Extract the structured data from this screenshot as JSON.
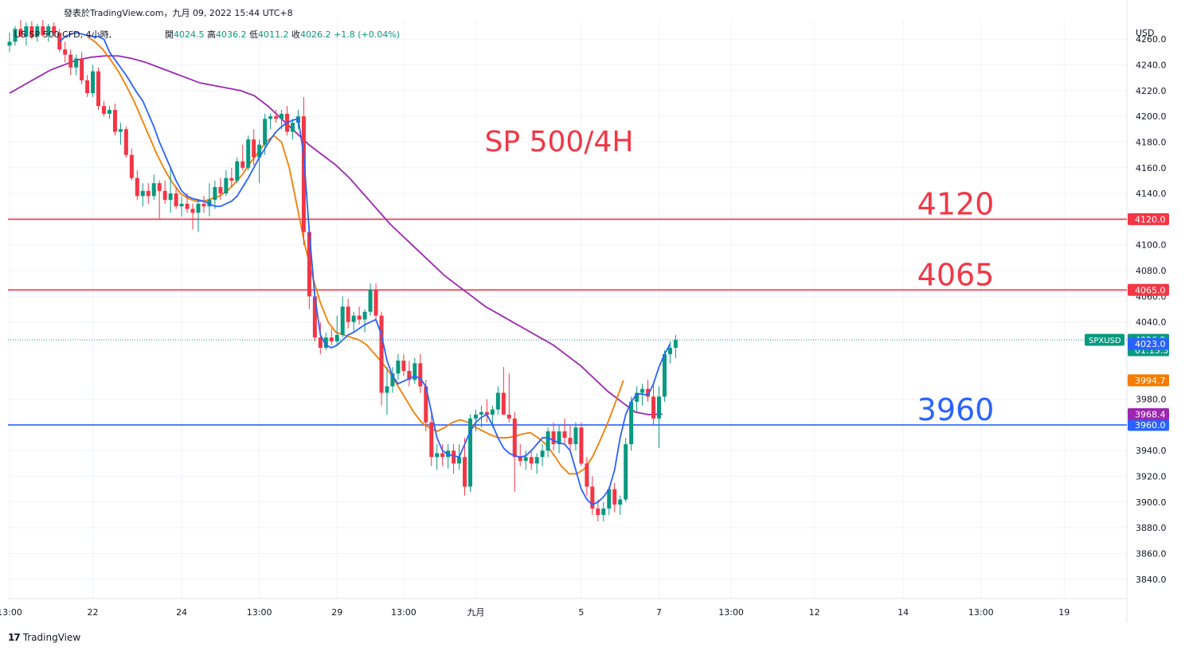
{
  "published": "發表於TradingView.com，九月 09, 2022 15:44 UTC+8",
  "symbol_line": "US SP 500 CFD, 4小時,",
  "ohlc": {
    "o_label": "開",
    "o": "4024.5",
    "h_label": "高",
    "h": "4036.2",
    "l_label": "低",
    "l": "4011.2",
    "c_label": "收",
    "c": "4026.2",
    "chg": "+1.8 (+0.04%)"
  },
  "currency": "USD",
  "footer_brand": "TradingView",
  "colors": {
    "up": "#089981",
    "down": "#f23645",
    "ma_fast": "#2962ff",
    "ma_mid": "#f57c00",
    "ma_slow": "#9c27b0",
    "res_line": "#f23645",
    "sup_line": "#2962ff"
  },
  "chart_data": {
    "type": "candlestick",
    "title": "SP 500/4H",
    "ylim": [
      3825,
      4275
    ],
    "y_ticks": [
      "4260.0",
      "4240.0",
      "4220.0",
      "4200.0",
      "4180.0",
      "4160.0",
      "4140.0",
      "4120.0",
      "4100.0",
      "4080.0",
      "4060.0",
      "4040.0",
      "3980.0",
      "3940.0",
      "3920.0",
      "3900.0",
      "3880.0",
      "3860.0",
      "3840.0"
    ],
    "x_ticks": [
      {
        "label": "13:00",
        "i": 0
      },
      {
        "label": "22",
        "i": 15
      },
      {
        "label": "24",
        "i": 31
      },
      {
        "label": "13:00",
        "i": 45
      },
      {
        "label": "29",
        "i": 59
      },
      {
        "label": "13:00",
        "i": 71
      },
      {
        "label": "九月",
        "i": 84
      },
      {
        "label": "5",
        "i": 103
      },
      {
        "label": "7",
        "i": 117
      },
      {
        "label": "13:00",
        "i": 130
      },
      {
        "label": "12",
        "i": 145
      },
      {
        "label": "14",
        "i": 161
      },
      {
        "label": "13:00",
        "i": 175
      },
      {
        "label": "19",
        "i": 190
      }
    ],
    "candles": [
      [
        4255,
        4265,
        4250,
        4258
      ],
      [
        4258,
        4270,
        4255,
        4268
      ],
      [
        4268,
        4275,
        4262,
        4262
      ],
      [
        4262,
        4273,
        4255,
        4270
      ],
      [
        4270,
        4274,
        4260,
        4262
      ],
      [
        4262,
        4272,
        4258,
        4270
      ],
      [
        4270,
        4275,
        4262,
        4263
      ],
      [
        4263,
        4272,
        4258,
        4270
      ],
      [
        4270,
        4273,
        4262,
        4265
      ],
      [
        4265,
        4268,
        4250,
        4252
      ],
      [
        4252,
        4258,
        4242,
        4248
      ],
      [
        4248,
        4252,
        4232,
        4238
      ],
      [
        4238,
        4248,
        4232,
        4245
      ],
      [
        4245,
        4250,
        4225,
        4228
      ],
      [
        4228,
        4232,
        4215,
        4218
      ],
      [
        4218,
        4240,
        4215,
        4235
      ],
      [
        4235,
        4238,
        4205,
        4208
      ],
      [
        4208,
        4212,
        4200,
        4202
      ],
      [
        4202,
        4208,
        4198,
        4205
      ],
      [
        4205,
        4210,
        4185,
        4188
      ],
      [
        4188,
        4195,
        4178,
        4190
      ],
      [
        4190,
        4192,
        4168,
        4170
      ],
      [
        4170,
        4175,
        4150,
        4152
      ],
      [
        4152,
        4158,
        4135,
        4138
      ],
      [
        4138,
        4148,
        4130,
        4142
      ],
      [
        4142,
        4148,
        4132,
        4138
      ],
      [
        4138,
        4155,
        4135,
        4148
      ],
      [
        4148,
        4150,
        4120,
        4142
      ],
      [
        4142,
        4150,
        4132,
        4135
      ],
      [
        4135,
        4160,
        4125,
        4140
      ],
      [
        4140,
        4145,
        4128,
        4130
      ],
      [
        4130,
        4138,
        4122,
        4132
      ],
      [
        4132,
        4140,
        4125,
        4128
      ],
      [
        4128,
        4132,
        4112,
        4125
      ],
      [
        4125,
        4135,
        4110,
        4132
      ],
      [
        4132,
        4138,
        4125,
        4130
      ],
      [
        4130,
        4148,
        4122,
        4135
      ],
      [
        4135,
        4150,
        4128,
        4145
      ],
      [
        4145,
        4152,
        4135,
        4140
      ],
      [
        4140,
        4158,
        4138,
        4152
      ],
      [
        4152,
        4160,
        4145,
        4150
      ],
      [
        4150,
        4168,
        4148,
        4165
      ],
      [
        4165,
        4178,
        4158,
        4160
      ],
      [
        4160,
        4185,
        4158,
        4182
      ],
      [
        4182,
        4190,
        4162,
        4168
      ],
      [
        4168,
        4182,
        4148,
        4178
      ],
      [
        4178,
        4202,
        4170,
        4198
      ],
      [
        4198,
        4202,
        4190,
        4200
      ],
      [
        4200,
        4205,
        4195,
        4198
      ],
      [
        4198,
        4205,
        4190,
        4202
      ],
      [
        4202,
        4208,
        4185,
        4188
      ],
      [
        4188,
        4198,
        4182,
        4195
      ],
      [
        4195,
        4205,
        4190,
        4200
      ],
      [
        4200,
        4215,
        4100,
        4110
      ],
      [
        4110,
        4115,
        4050,
        4060
      ],
      [
        4060,
        4065,
        4025,
        4028
      ],
      [
        4028,
        4040,
        4015,
        4020
      ],
      [
        4020,
        4032,
        4018,
        4028
      ],
      [
        4028,
        4035,
        4022,
        4025
      ],
      [
        4025,
        4045,
        4022,
        4030
      ],
      [
        4030,
        4060,
        4028,
        4052
      ],
      [
        4052,
        4058,
        4035,
        4040
      ],
      [
        4040,
        4048,
        4032,
        4045
      ],
      [
        4045,
        4052,
        4038,
        4042
      ],
      [
        4042,
        4050,
        4032,
        4048
      ],
      [
        4048,
        4070,
        4045,
        4065
      ],
      [
        4065,
        4070,
        4040,
        4045
      ],
      [
        4045,
        4048,
        3975,
        3985
      ],
      [
        3985,
        4005,
        3968,
        3990
      ],
      [
        3990,
        4005,
        3985,
        4000
      ],
      [
        4000,
        4015,
        3995,
        4010
      ],
      [
        4010,
        4015,
        3998,
        4002
      ],
      [
        4002,
        4010,
        3990,
        3995
      ],
      [
        3995,
        4012,
        3992,
        4008
      ],
      [
        4008,
        4015,
        3985,
        3990
      ],
      [
        3990,
        3995,
        3955,
        3962
      ],
      [
        3962,
        3968,
        3928,
        3935
      ],
      [
        3935,
        3945,
        3925,
        3938
      ],
      [
        3938,
        3945,
        3928,
        3935
      ],
      [
        3935,
        3945,
        3926,
        3940
      ],
      [
        3940,
        3945,
        3922,
        3930
      ],
      [
        3930,
        3945,
        3925,
        3935
      ],
      [
        3935,
        3950,
        3905,
        3912
      ],
      [
        3912,
        3968,
        3908,
        3965
      ],
      [
        3965,
        3972,
        3955,
        3968
      ],
      [
        3968,
        3975,
        3958,
        3970
      ],
      [
        3970,
        3980,
        3962,
        3968
      ],
      [
        3968,
        3975,
        3958,
        3972
      ],
      [
        3972,
        3990,
        3968,
        3985
      ],
      [
        3985,
        4005,
        3970,
        3968
      ],
      [
        3968,
        4000,
        3962,
        3965
      ],
      [
        3965,
        3970,
        3908,
        3935
      ],
      [
        3935,
        3945,
        3928,
        3932
      ],
      [
        3932,
        3940,
        3925,
        3935
      ],
      [
        3935,
        3940,
        3925,
        3930
      ],
      [
        3930,
        3938,
        3922,
        3935
      ],
      [
        3935,
        3945,
        3928,
        3940
      ],
      [
        3940,
        3958,
        3935,
        3955
      ],
      [
        3955,
        3962,
        3940,
        3945
      ],
      [
        3945,
        3960,
        3938,
        3955
      ],
      [
        3955,
        3965,
        3945,
        3950
      ],
      [
        3950,
        3960,
        3940,
        3945
      ],
      [
        3945,
        3962,
        3940,
        3958
      ],
      [
        3958,
        3962,
        3928,
        3930
      ],
      [
        3930,
        3935,
        3905,
        3912
      ],
      [
        3912,
        3920,
        3890,
        3895
      ],
      [
        3895,
        3902,
        3885,
        3890
      ],
      [
        3890,
        3900,
        3885,
        3895
      ],
      [
        3895,
        3912,
        3890,
        3910
      ],
      [
        3910,
        3915,
        3892,
        3898
      ],
      [
        3898,
        3905,
        3890,
        3902
      ],
      [
        3902,
        3950,
        3900,
        3945
      ],
      [
        3945,
        3982,
        3940,
        3978
      ],
      [
        3978,
        3990,
        3970,
        3985
      ],
      [
        3985,
        3992,
        3975,
        3988
      ],
      [
        3988,
        3995,
        3978,
        3982
      ],
      [
        3982,
        3992,
        3960,
        3965
      ],
      [
        3965,
        3990,
        3942,
        3982
      ],
      [
        3982,
        4018,
        3978,
        4015
      ],
      [
        4015,
        4025,
        4008,
        4020
      ],
      [
        4020,
        4030,
        4012,
        4026
      ]
    ],
    "ma_fast": [
      4258,
      4262,
      4264,
      4265,
      4264,
      4263,
      4262,
      4262,
      4260,
      4250,
      4244,
      4238,
      4232,
      4225,
      4218,
      4212,
      4202,
      4192,
      4180,
      4170,
      4160,
      4150,
      4142,
      4138,
      4136,
      4135,
      4134,
      4132,
      4130,
      4130,
      4132,
      4134,
      4138,
      4145,
      4152,
      4160,
      4168,
      4175,
      4182,
      4188,
      4192,
      4195,
      4197,
      4198,
      4170,
      4110,
      4060,
      4030,
      4022,
      4020,
      4022,
      4026,
      4030,
      4032,
      4035,
      4038,
      4040,
      4042,
      4030,
      4010,
      3998,
      3992,
      3994,
      3996,
      3998,
      3996,
      3990,
      3970,
      3950,
      3940,
      3937,
      3936,
      3935,
      3945,
      3955,
      3962,
      3966,
      3968,
      3960,
      3950,
      3942,
      3938,
      3936,
      3935,
      3936,
      3940,
      3945,
      3950,
      3950,
      3948,
      3946,
      3945,
      3940,
      3925,
      3910,
      3902,
      3898,
      3900,
      3904,
      3910,
      3925,
      3950,
      3968,
      3978,
      3984,
      3984,
      3983,
      3992,
      4005,
      4015,
      4023
    ],
    "ma_fast_start": 9,
    "ma_mid": [
      4262,
      4258,
      4252,
      4244,
      4235,
      4224,
      4212,
      4198,
      4184,
      4170,
      4158,
      4148,
      4140,
      4136,
      4134,
      4134,
      4136,
      4138,
      4142,
      4148,
      4155,
      4164,
      4172,
      4180,
      4185,
      4180,
      4160,
      4130,
      4100,
      4075,
      4055,
      4040,
      4032,
      4030,
      4028,
      4026,
      4022,
      4015,
      4008,
      4000,
      3990,
      3980,
      3970,
      3962,
      3958,
      3955,
      3958,
      3962,
      3964,
      3962,
      3958,
      3955,
      3952,
      3950,
      3950,
      3951,
      3953,
      3954,
      3950,
      3945,
      3937,
      3928,
      3922,
      3922,
      3926,
      3935,
      3948,
      3962,
      3978,
      3994.7
    ],
    "ma_mid_start": 14,
    "ma_slow": [
      4218,
      4224,
      4230,
      4236,
      4240,
      4244,
      4246,
      4247,
      4247,
      4245,
      4242,
      4238,
      4234,
      4230,
      4226,
      4224,
      4222,
      4220,
      4216,
      4208,
      4198,
      4188,
      4178,
      4170,
      4162,
      4152,
      4140,
      4128,
      4116,
      4106,
      4096,
      4086,
      4076,
      4068,
      4060,
      4052,
      4046,
      4040,
      4034,
      4028,
      4022,
      4014,
      4006,
      3996,
      3986,
      3978,
      3970,
      3968,
      3968.4
    ],
    "ma_slow_start": 0,
    "ma_slow_step": 2.45,
    "levels": [
      {
        "price": 4120,
        "label": "4120",
        "badge": "4120.0",
        "color": "#f23645"
      },
      {
        "price": 4065,
        "label": "4065",
        "badge": "4065.0",
        "color": "#f23645"
      },
      {
        "price": 3960,
        "label": "3960",
        "badge": "3960.0",
        "color": "#2962ff"
      }
    ],
    "badges": [
      {
        "price": 4026.2,
        "text": "4026.2",
        "sub": "01:15:33",
        "color": "#089981",
        "tag": "SPXUSD"
      },
      {
        "price": 4023.0,
        "text": "4023.0",
        "color": "#2962ff"
      },
      {
        "price": 3994.7,
        "text": "3994.7",
        "color": "#f57c00"
      },
      {
        "price": 3968.4,
        "text": "3968.4",
        "color": "#9c27b0"
      }
    ],
    "last_price": 4026.2
  }
}
